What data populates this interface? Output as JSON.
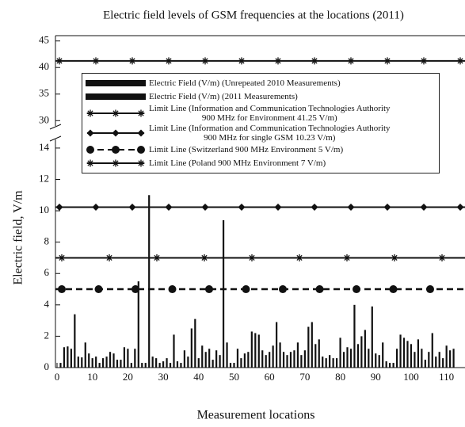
{
  "chart_data": {
    "type": "bar",
    "title": "Electric field levels of GSM frequencies at the locations (2011)",
    "x_label": "Measurement locations",
    "y_label": "Electric field, V/m",
    "x": [
      1,
      2,
      3,
      4,
      5,
      6,
      7,
      8,
      9,
      10,
      11,
      12,
      13,
      14,
      15,
      16,
      17,
      18,
      19,
      20,
      21,
      22,
      23,
      24,
      25,
      26,
      27,
      28,
      29,
      30,
      31,
      32,
      33,
      34,
      35,
      36,
      37,
      38,
      39,
      40,
      41,
      42,
      43,
      44,
      45,
      46,
      47,
      48,
      49,
      50,
      51,
      52,
      53,
      54,
      55,
      56,
      57,
      58,
      59,
      60,
      61,
      62,
      63,
      64,
      65,
      66,
      67,
      68,
      69,
      70,
      71,
      72,
      73,
      74,
      75,
      76,
      77,
      78,
      79,
      80,
      81,
      82,
      83,
      84,
      85,
      86,
      87,
      88,
      89,
      90,
      91,
      92,
      93,
      94,
      95,
      96,
      97,
      98,
      99,
      100,
      101,
      102,
      103,
      104,
      105,
      106,
      107,
      108,
      109,
      110,
      111,
      112
    ],
    "series": [
      {
        "name": "Electric Field (V/m) (Unrepeated 2010 Measurements)",
        "color": "#111111",
        "values": [
          null,
          null,
          null,
          null,
          null,
          null,
          null,
          null,
          null,
          null,
          null,
          null,
          null,
          null,
          null,
          null,
          null,
          null,
          null,
          null,
          null,
          null,
          5.5,
          null,
          null,
          11,
          null,
          null,
          null,
          null,
          null,
          null,
          null,
          null,
          null,
          null,
          null,
          null,
          null,
          null,
          null,
          null,
          null,
          null,
          null,
          null,
          9.4,
          null,
          null,
          null,
          null,
          null,
          null,
          null,
          null,
          null,
          null,
          null,
          null,
          null,
          null,
          null,
          null,
          null,
          null,
          null,
          null,
          null,
          null,
          null,
          null,
          null,
          null,
          null,
          null,
          null,
          null,
          null,
          null,
          null,
          null,
          null,
          null,
          null,
          null,
          null,
          null,
          null,
          null,
          null,
          null,
          null,
          null,
          null,
          null,
          null,
          null,
          null,
          null,
          null,
          null,
          null,
          null,
          null,
          null,
          null,
          null,
          null,
          null,
          null,
          null,
          null
        ]
      },
      {
        "name": "Electric Field (V/m) (2011 Measurements)",
        "color": "#111111",
        "values": [
          0.3,
          1.3,
          1.35,
          1.2,
          3.4,
          0.7,
          0.65,
          1.6,
          0.9,
          0.6,
          0.7,
          0.3,
          0.6,
          0.7,
          1.0,
          0.9,
          0.5,
          0.5,
          1.3,
          1.2,
          0.3,
          1.2,
          null,
          0.3,
          0.3,
          null,
          0.7,
          0.6,
          0.3,
          0.4,
          0.6,
          0.3,
          2.1,
          0.4,
          0.3,
          1.1,
          0.7,
          2.5,
          3.1,
          0.6,
          1.4,
          1.0,
          1.2,
          0.5,
          1.1,
          0.8,
          null,
          1.6,
          0.3,
          0.3,
          1.2,
          0.6,
          0.9,
          1.0,
          2.3,
          2.2,
          2.1,
          1.1,
          0.8,
          1.0,
          1.4,
          2.9,
          1.6,
          1.0,
          0.8,
          1.0,
          1.1,
          1.6,
          0.8,
          1.1,
          2.6,
          2.9,
          1.5,
          1.8,
          0.7,
          0.6,
          0.8,
          0.6,
          0.6,
          1.9,
          1.0,
          1.3,
          1.2,
          4.0,
          1.5,
          2.0,
          2.4,
          1.2,
          3.9,
          0.9,
          0.8,
          1.6,
          0.4,
          0.3,
          0.3,
          1.2,
          2.1,
          1.9,
          1.7,
          1.5,
          1.0,
          1.8,
          1.2,
          0.5,
          1.0,
          2.2,
          0.7,
          1.0,
          0.6,
          1.4,
          1.1,
          1.2
        ]
      }
    ],
    "limit_lines": [
      {
        "name": "Limit Line (Information and Communication Technologies Authority\n900 MHz for Environment 41.25 V/m)",
        "value": 41.25,
        "marker": "star",
        "color": "#111111"
      },
      {
        "name": "Limit Line (Information and Communication Technologies Authority\n900 MHz for single GSM 10.23 V/m)",
        "value": 10.23,
        "marker": "diamond",
        "color": "#111111"
      },
      {
        "name": "Limit Line (Switzerland 900 MHz Environment 5 V/m)",
        "value": 5,
        "marker": "circle",
        "dashed": true,
        "color": "#111111"
      },
      {
        "name": "Limit Line (Poland 900 MHz Environment 7 V/m)",
        "value": 7,
        "marker": "star",
        "color": "#111111"
      }
    ],
    "xlim": [
      0,
      115
    ],
    "xticks": [
      0,
      10,
      20,
      30,
      40,
      50,
      60,
      70,
      80,
      90,
      100,
      110
    ],
    "ylim": [
      0,
      14.5
    ],
    "yticks": [
      0,
      2,
      4,
      6,
      8,
      10,
      12,
      14
    ],
    "ylim_upper": [
      29,
      46
    ],
    "yticks_upper": [
      30,
      35,
      40,
      45
    ]
  }
}
